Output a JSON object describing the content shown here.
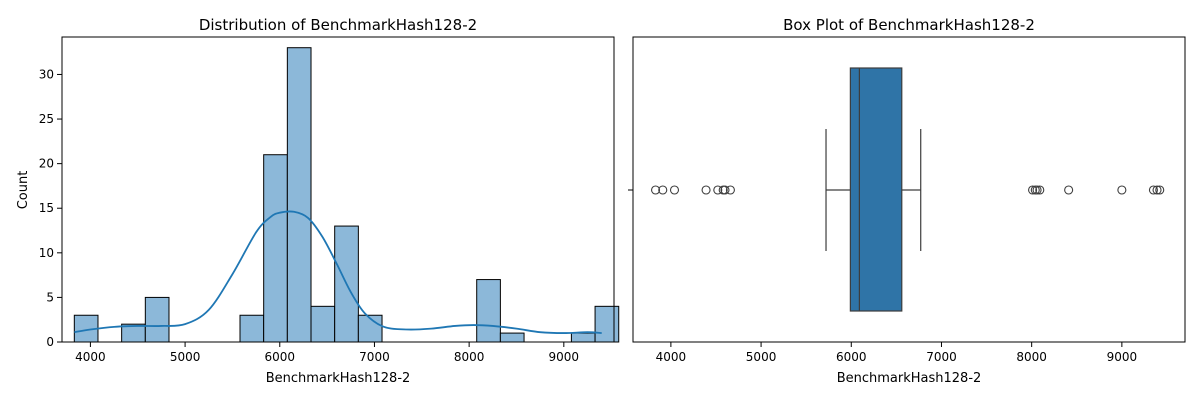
{
  "colors": {
    "hist_fill": "#8cb8d9",
    "hist_edge": "#000000",
    "kde_line": "#1f77b4",
    "box_fill": "#2f74a7",
    "box_edge": "#3d3d3d",
    "outlier": "#3d3d3d"
  },
  "chart_data": [
    {
      "type": "bar",
      "subtype": "histogram-with-kde",
      "title": "Distribution of BenchmarkHash128-2",
      "xlabel": "BenchmarkHash128-2",
      "ylabel": "Count",
      "xlim": [
        3700,
        9530
      ],
      "ylim": [
        0,
        34.2
      ],
      "xticks": [
        "4000",
        "5000",
        "6000",
        "7000",
        "8000",
        "9000"
      ],
      "xtick_values": [
        4000,
        5000,
        6000,
        7000,
        8000,
        9000
      ],
      "yticks": [
        "0",
        "5",
        "10",
        "15",
        "20",
        "25",
        "30"
      ],
      "ytick_values": [
        0,
        5,
        10,
        15,
        20,
        25,
        30
      ],
      "grid": false,
      "bins": [
        {
          "x0": 3830,
          "x1": 4080,
          "count": 3
        },
        {
          "x0": 4330,
          "x1": 4580,
          "count": 2
        },
        {
          "x0": 4580,
          "x1": 4830,
          "count": 5
        },
        {
          "x0": 5580,
          "x1": 5830,
          "count": 3
        },
        {
          "x0": 5830,
          "x1": 6080,
          "count": 21
        },
        {
          "x0": 6080,
          "x1": 6330,
          "count": 33
        },
        {
          "x0": 6330,
          "x1": 6580,
          "count": 4
        },
        {
          "x0": 6580,
          "x1": 6830,
          "count": 13
        },
        {
          "x0": 6830,
          "x1": 7080,
          "count": 3
        },
        {
          "x0": 8080,
          "x1": 8330,
          "count": 7
        },
        {
          "x0": 8330,
          "x1": 8580,
          "count": 1
        },
        {
          "x0": 9080,
          "x1": 9330,
          "count": 1
        },
        {
          "x0": 9330,
          "x1": 9580,
          "count": 4
        }
      ],
      "kde": {
        "x": [
          3830,
          4000,
          4250,
          4500,
          4750,
          5000,
          5250,
          5500,
          5750,
          5900,
          6000,
          6150,
          6300,
          6450,
          6600,
          6750,
          6900,
          7100,
          7350,
          7600,
          7850,
          8050,
          8250,
          8500,
          8750,
          9000,
          9250,
          9400
        ],
        "y": [
          1.1,
          1.4,
          1.7,
          1.8,
          1.8,
          2.0,
          3.6,
          7.6,
          12.3,
          14.0,
          14.5,
          14.6,
          13.9,
          11.8,
          8.8,
          5.6,
          3.2,
          1.7,
          1.4,
          1.5,
          1.8,
          1.9,
          1.8,
          1.5,
          1.1,
          1.0,
          1.1,
          1.0
        ]
      }
    },
    {
      "type": "box",
      "title": "Box Plot of BenchmarkHash128-2",
      "xlabel": "BenchmarkHash128-2",
      "xlim": [
        3580,
        9700
      ],
      "xticks": [
        "4000",
        "5000",
        "6000",
        "7000",
        "8000",
        "9000"
      ],
      "xtick_values": [
        4000,
        5000,
        6000,
        7000,
        8000,
        9000
      ],
      "grid": false,
      "whisker_low": 5720,
      "q1": 5990,
      "median": 6090,
      "q3": 6560,
      "whisker_high": 6770,
      "outliers": [
        3830,
        3910,
        4040,
        4390,
        4520,
        4580,
        4600,
        4660,
        8010,
        8040,
        8060,
        8090,
        8410,
        9000,
        9350,
        9390,
        9420
      ]
    }
  ]
}
